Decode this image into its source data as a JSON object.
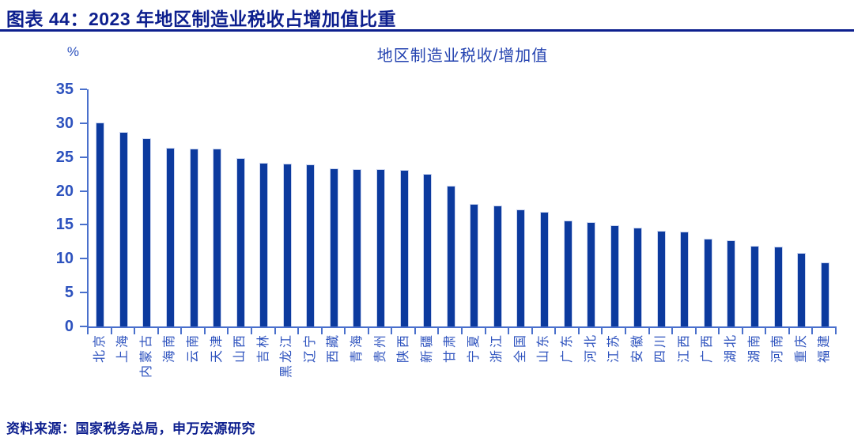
{
  "header": {
    "title": "图表 44：2023 年地区制造业税收占增加值比重"
  },
  "footer": {
    "source": "资料来源：国家税务总局，申万宏源研究"
  },
  "chart_data": {
    "type": "bar",
    "title": "地区制造业税收/增加值",
    "unit_label": "%",
    "categories": [
      "北京",
      "上海",
      "内蒙古",
      "海南",
      "云南",
      "天津",
      "山西",
      "吉林",
      "黑龙江",
      "辽宁",
      "西藏",
      "青海",
      "贵州",
      "陕西",
      "新疆",
      "甘肃",
      "宁夏",
      "浙江",
      "全国",
      "山东",
      "广东",
      "河北",
      "江苏",
      "安徽",
      "四川",
      "江西",
      "广西",
      "湖北",
      "湖南",
      "河南",
      "重庆",
      "福建"
    ],
    "values": [
      30.1,
      28.7,
      27.8,
      26.4,
      26.3,
      26.3,
      24.9,
      24.1,
      24.0,
      23.9,
      23.3,
      23.2,
      23.2,
      23.1,
      22.5,
      20.8,
      18.1,
      17.9,
      17.3,
      16.9,
      15.6,
      15.4,
      14.9,
      14.6,
      14.1,
      14.0,
      13.0,
      12.7,
      11.9,
      11.8,
      10.9,
      9.5
    ],
    "xlabel": "",
    "ylabel": "%",
    "ylim": [
      0,
      35
    ],
    "y_ticks": [
      0,
      5,
      10,
      15,
      20,
      25,
      30,
      35
    ],
    "grid": false,
    "legend": "none",
    "colors": {
      "bar_fill": "#0c3a9e",
      "bar_border": "#ccd6f0",
      "axis_line": "#4a70cc",
      "tick_label_text": "#2d52be",
      "chart_title_text": "#2443b0",
      "header_navy": "#0d1f8e"
    }
  }
}
